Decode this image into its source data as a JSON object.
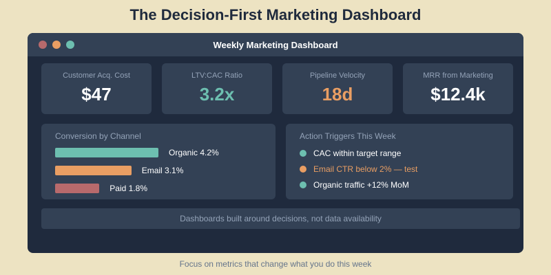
{
  "title": "The Decision-First Marketing Dashboard",
  "window": {
    "title": "Weekly Marketing Dashboard"
  },
  "kpis": [
    {
      "label": "Customer Acq. Cost",
      "value": "$47",
      "color": "#ffffff"
    },
    {
      "label": "LTV:CAC Ratio",
      "value": "3.2x",
      "color": "#6dbfb0"
    },
    {
      "label": "Pipeline Velocity",
      "value": "18d",
      "color": "#e99e63"
    },
    {
      "label": "MRR from Marketing",
      "value": "$12.4k",
      "color": "#ffffff"
    }
  ],
  "conversion": {
    "title": "Conversion by Channel",
    "items": [
      {
        "label": "Organic 4.2%",
        "value": 4.2,
        "color": "#6dbfb0"
      },
      {
        "label": "Email 3.1%",
        "value": 3.1,
        "color": "#e99e63"
      },
      {
        "label": "Paid 1.8%",
        "value": 1.8,
        "color": "#b86a6c"
      }
    ]
  },
  "triggers": {
    "title": "Action Triggers This Week",
    "items": [
      {
        "text": "CAC within target range",
        "color": "#6dbfb0",
        "text_color": "#ffffff"
      },
      {
        "text": "Email CTR below 2% — test",
        "color": "#e99e63",
        "text_color": "#e99e63"
      },
      {
        "text": "Organic traffic +12% MoM",
        "color": "#6dbfb0",
        "text_color": "#ffffff"
      }
    ]
  },
  "footer": "Dashboards built around decisions, not data availability",
  "caption": "Focus on metrics that change what you do this week"
}
